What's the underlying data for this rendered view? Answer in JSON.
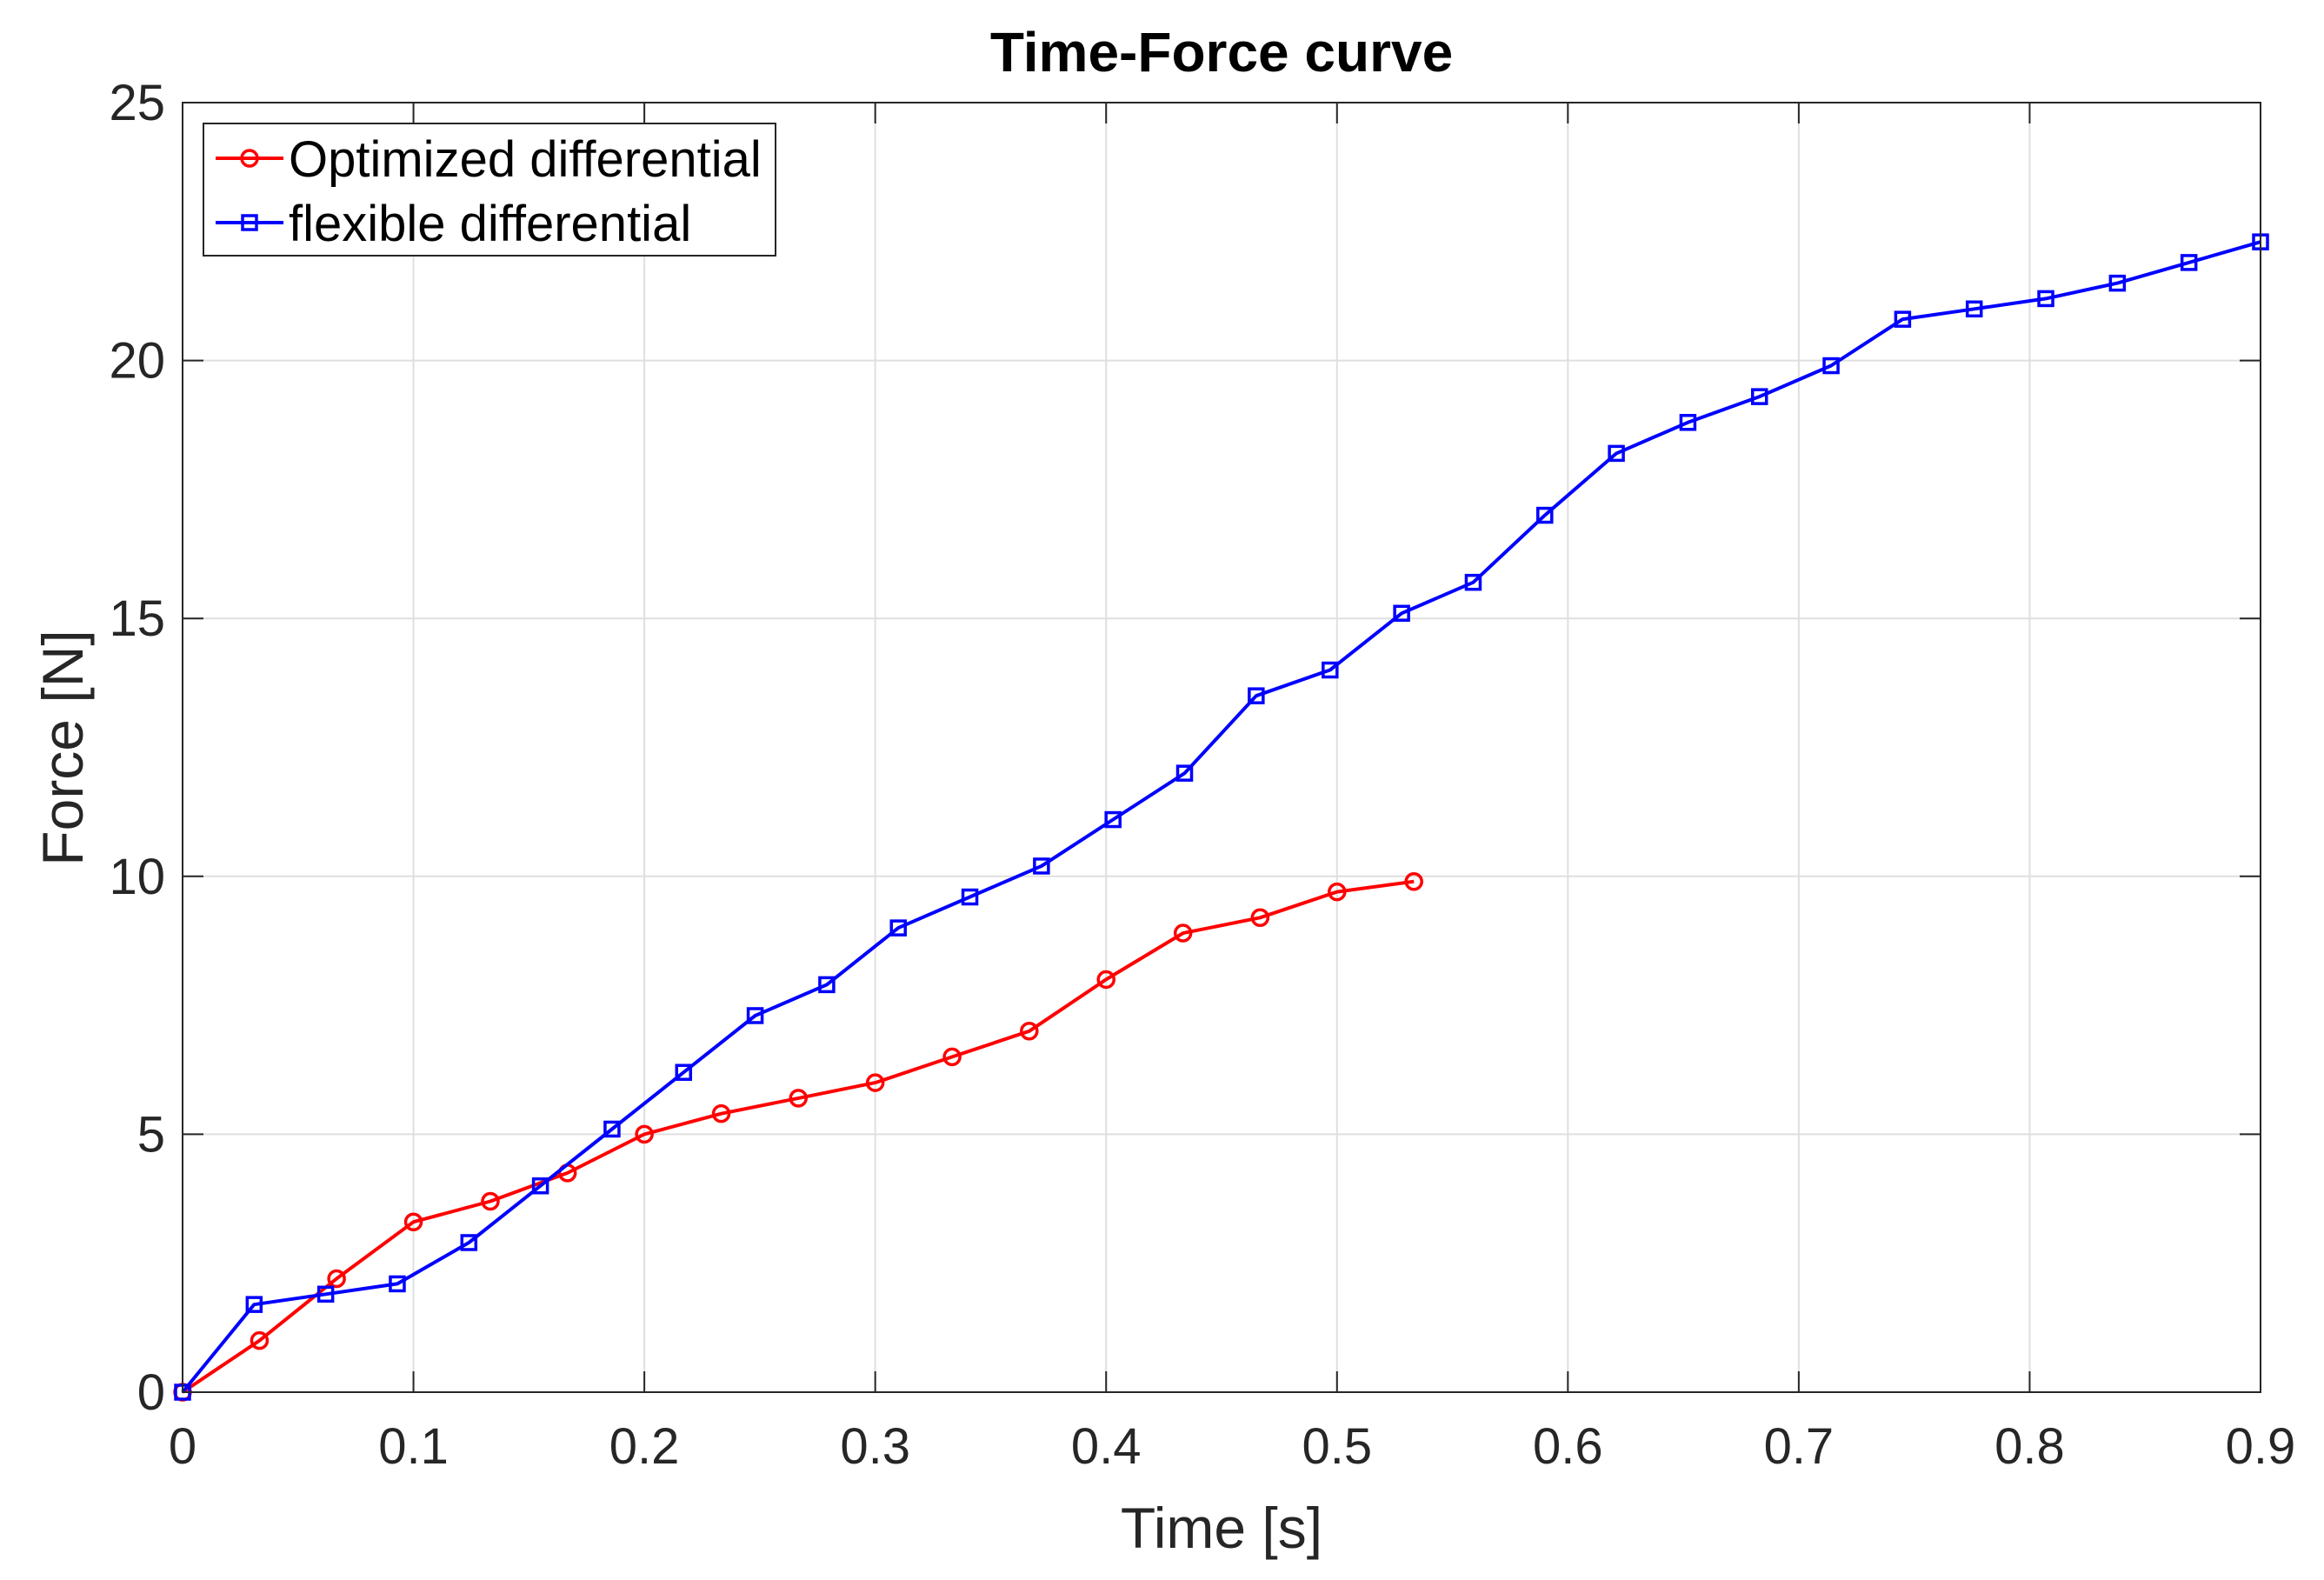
{
  "chart_data": {
    "type": "line",
    "title": "Time-Force curve",
    "xlabel": "Time [s]",
    "ylabel": "Force [N]",
    "xlim": [
      0,
      0.9
    ],
    "ylim": [
      0,
      25
    ],
    "x_ticks": [
      0,
      0.1,
      0.2,
      0.3,
      0.4,
      0.5,
      0.6,
      0.7,
      0.8,
      0.9
    ],
    "x_tick_labels": [
      "0",
      "0.1",
      "0.2",
      "0.3",
      "0.4",
      "0.5",
      "0.6",
      "0.7",
      "0.8",
      "0.9"
    ],
    "y_ticks": [
      0,
      5,
      10,
      15,
      20,
      25
    ],
    "y_tick_labels": [
      "0",
      "5",
      "10",
      "15",
      "20",
      "25"
    ],
    "grid": true,
    "legend_position": "top-left",
    "series": [
      {
        "name": "Optimized differential",
        "color": "#ff0000",
        "marker": "circle",
        "x": [
          0,
          0.0333,
          0.0667,
          0.1,
          0.1333,
          0.1667,
          0.2,
          0.2333,
          0.2667,
          0.3,
          0.3333,
          0.3667,
          0.4,
          0.4333,
          0.4667,
          0.5,
          0.5333
        ],
        "y": [
          0,
          1.0,
          2.2,
          3.3,
          3.7,
          4.25,
          5.0,
          5.4,
          5.7,
          6.0,
          6.5,
          7.0,
          8.0,
          8.9,
          9.2,
          9.7,
          9.9
        ]
      },
      {
        "name": "flexible differential",
        "color": "#0000ff",
        "marker": "square",
        "x": [
          0,
          0.031,
          0.062,
          0.093,
          0.124,
          0.155,
          0.186,
          0.217,
          0.248,
          0.279,
          0.31,
          0.341,
          0.372,
          0.403,
          0.434,
          0.465,
          0.497,
          0.528,
          0.559,
          0.59,
          0.621,
          0.652,
          0.683,
          0.714,
          0.745,
          0.776,
          0.807,
          0.838,
          0.869,
          0.9
        ],
        "y": [
          0,
          1.7,
          1.9,
          2.1,
          2.9,
          4.0,
          5.1,
          6.2,
          7.3,
          7.9,
          9.0,
          9.6,
          10.2,
          11.1,
          12.0,
          13.5,
          14.0,
          15.1,
          15.7,
          17.0,
          18.2,
          18.8,
          19.3,
          19.9,
          20.8,
          21.0,
          21.2,
          21.5,
          21.9,
          22.3
        ]
      }
    ]
  }
}
